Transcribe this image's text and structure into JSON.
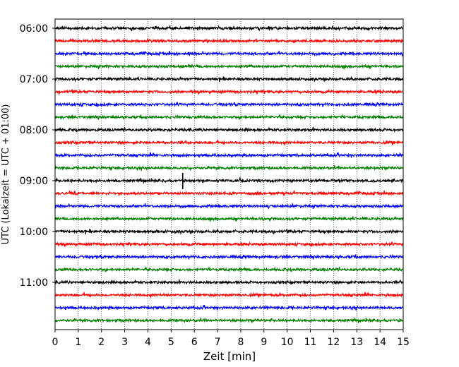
{
  "chart_data": {
    "type": "line",
    "title": "",
    "xlabel": "Zeit  [min]",
    "ylabel": "UTC (Lokalzeit = UTC + 01:00)",
    "xlim": [
      0,
      15
    ],
    "x_ticks": [
      "0",
      "1",
      "2",
      "3",
      "4",
      "5",
      "6",
      "7",
      "8",
      "9",
      "10",
      "11",
      "12",
      "13",
      "14",
      "15"
    ],
    "y_ticks": [
      "06:00",
      "07:00",
      "08:00",
      "09:00",
      "10:00",
      "11:00"
    ],
    "grid": "vertical dotted at each minute",
    "trace_colors_cycle": [
      "#000000",
      "#ff0000",
      "#0000ff",
      "#008000"
    ],
    "traces": [
      {
        "start": "06:00",
        "color": "#000000"
      },
      {
        "start": "06:15",
        "color": "#ff0000"
      },
      {
        "start": "06:30",
        "color": "#0000ff"
      },
      {
        "start": "06:45",
        "color": "#008000"
      },
      {
        "start": "07:00",
        "color": "#000000"
      },
      {
        "start": "07:15",
        "color": "#ff0000"
      },
      {
        "start": "07:30",
        "color": "#0000ff"
      },
      {
        "start": "07:45",
        "color": "#008000"
      },
      {
        "start": "08:00",
        "color": "#000000"
      },
      {
        "start": "08:15",
        "color": "#ff0000"
      },
      {
        "start": "08:30",
        "color": "#0000ff"
      },
      {
        "start": "08:45",
        "color": "#008000"
      },
      {
        "start": "09:00",
        "color": "#000000",
        "event_minute": 5.5
      },
      {
        "start": "09:15",
        "color": "#ff0000"
      },
      {
        "start": "09:30",
        "color": "#0000ff"
      },
      {
        "start": "09:45",
        "color": "#008000"
      },
      {
        "start": "10:00",
        "color": "#000000"
      },
      {
        "start": "10:15",
        "color": "#ff0000"
      },
      {
        "start": "10:30",
        "color": "#0000ff"
      },
      {
        "start": "10:45",
        "color": "#008000"
      },
      {
        "start": "11:00",
        "color": "#000000"
      },
      {
        "start": "11:15",
        "color": "#ff0000"
      },
      {
        "start": "11:30",
        "color": "#0000ff"
      },
      {
        "start": "11:45",
        "color": "#008000"
      }
    ]
  }
}
